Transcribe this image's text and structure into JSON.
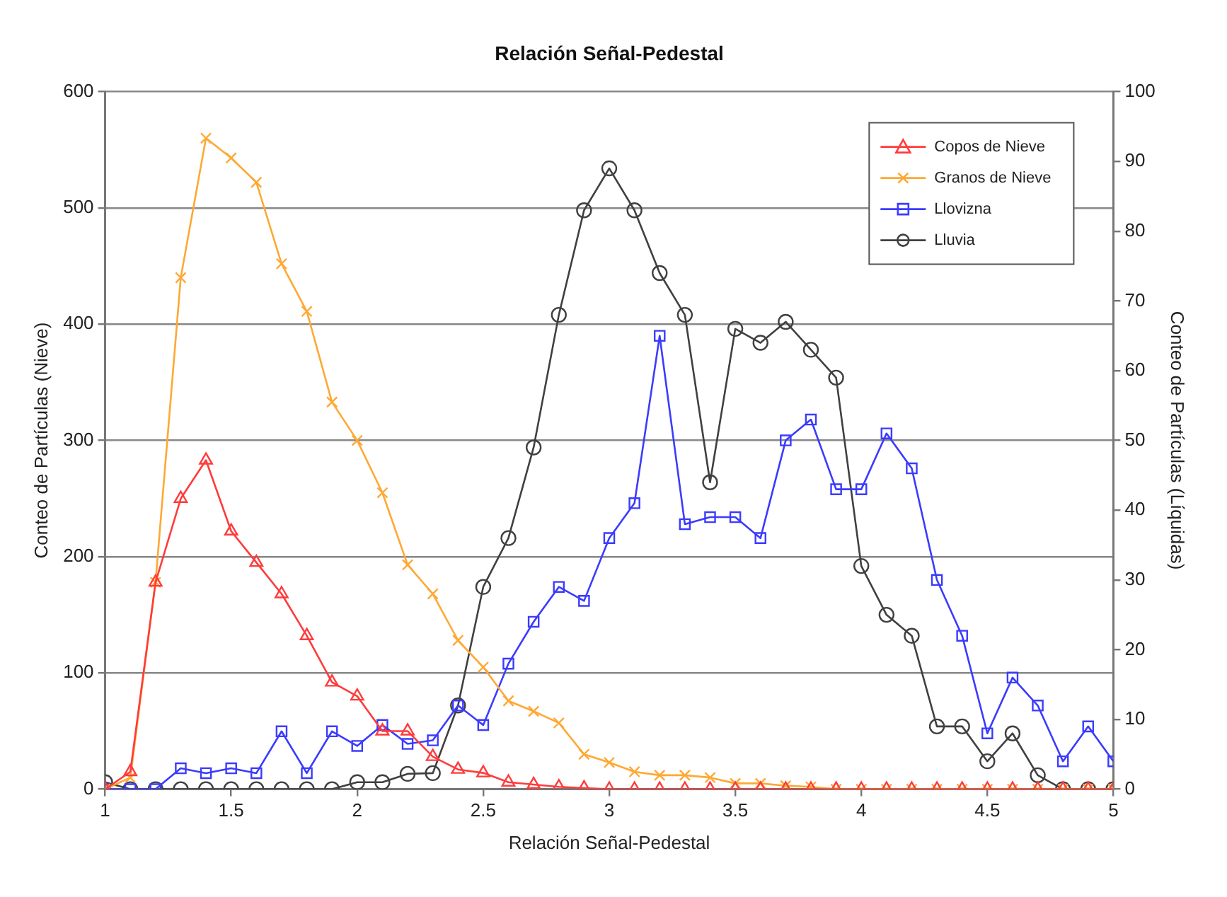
{
  "chart_data": {
    "type": "line",
    "title": "Relación Señal-Pedestal",
    "xlabel": "Relación Señal-Pedestal",
    "ylabel": "Conteo de Partículas (Nieve)",
    "y2label": "Conteo de Partículas (Líquidas)",
    "x": [
      1,
      1.1,
      1.2,
      1.3,
      1.4,
      1.5,
      1.6,
      1.7,
      1.8,
      1.9,
      2,
      2.1,
      2.2,
      2.3,
      2.4,
      2.5,
      2.6,
      2.7,
      2.8,
      2.9,
      3,
      3.1,
      3.2,
      3.3,
      3.4,
      3.5,
      3.6,
      3.7,
      3.8,
      3.9,
      4,
      4.1,
      4.2,
      4.3,
      4.4,
      4.5,
      4.6,
      4.7,
      4.8,
      4.9,
      5
    ],
    "series": [
      {
        "name": "Copos de Nieve",
        "color": "#ff3b3b",
        "marker": "triangle",
        "values": [
          0,
          15,
          178,
          250,
          283,
          222,
          195,
          168,
          132,
          92,
          80,
          50,
          50,
          28,
          17,
          14,
          6,
          4,
          2,
          1,
          0,
          0,
          0,
          0,
          0,
          0,
          0,
          0,
          0,
          0,
          0,
          0,
          0,
          0,
          0,
          0,
          0,
          0,
          0,
          0,
          0
        ]
      },
      {
        "name": "Granos de Nieve",
        "color": "#ffa833",
        "marker": "cross",
        "values": [
          0,
          10,
          178,
          440,
          560,
          543,
          522,
          452,
          411,
          333,
          300,
          255,
          193,
          168,
          128,
          105,
          76,
          67,
          57,
          30,
          23,
          15,
          12,
          12,
          10,
          5,
          5,
          3,
          2,
          0,
          0,
          0,
          0,
          0,
          0,
          0,
          0,
          0,
          0,
          0,
          0
        ]
      },
      {
        "name": "Llovizna",
        "color": "#3b3bff",
        "marker": "square",
        "axis": "y2",
        "values": [
          0,
          0,
          0,
          3,
          2.3,
          3,
          2.3,
          8.3,
          2.3,
          8.3,
          6.2,
          9.2,
          6.5,
          7,
          12,
          9.2,
          18,
          24,
          29,
          27,
          36,
          41,
          65,
          38,
          39,
          39,
          36,
          50,
          53,
          43,
          43,
          51,
          46,
          30,
          22,
          8,
          16,
          12,
          4,
          9,
          4
        ]
      },
      {
        "name": "Lluvia",
        "color": "#404040",
        "marker": "circle",
        "axis": "y2",
        "values": [
          1,
          0,
          0,
          0,
          0,
          0,
          0,
          0,
          0,
          0,
          1,
          1,
          2.2,
          2.3,
          12,
          29,
          36,
          49,
          68,
          83,
          89,
          83,
          74,
          68,
          44,
          66,
          64,
          67,
          63,
          59,
          32,
          25,
          22,
          9,
          9,
          4,
          8,
          2,
          0,
          0,
          0
        ]
      }
    ],
    "xlim": [
      1,
      5
    ],
    "xticks": [
      1,
      1.5,
      2,
      2.5,
      3,
      3.5,
      4,
      4.5,
      5
    ],
    "ylim": [
      0,
      600
    ],
    "yticks": [
      0,
      100,
      200,
      300,
      400,
      500,
      600
    ],
    "y2lim": [
      0,
      100
    ],
    "y2ticks": [
      0,
      10,
      20,
      30,
      40,
      50,
      60,
      70,
      80,
      90,
      100
    ],
    "grid": "y",
    "legend": "top right",
    "line_style": "solid"
  }
}
